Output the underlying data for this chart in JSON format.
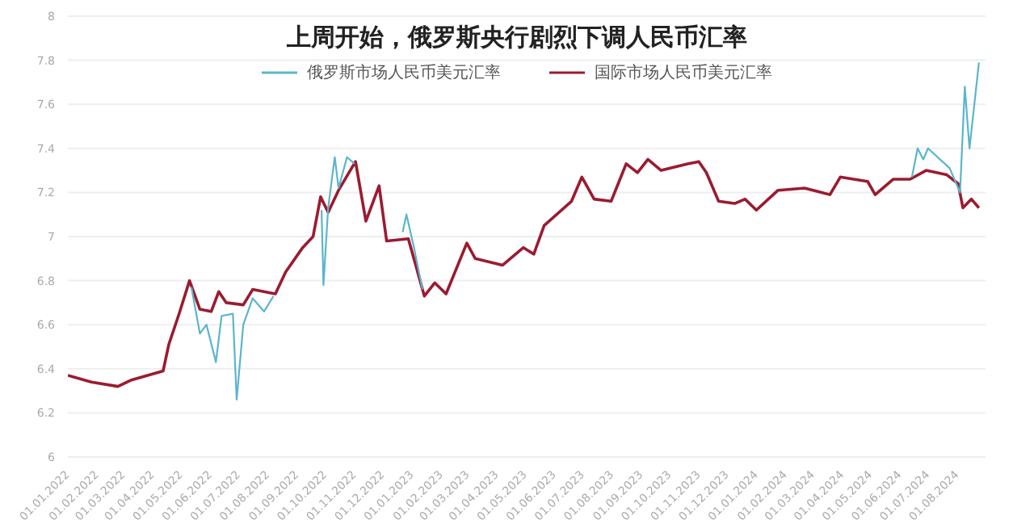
{
  "chart_data": {
    "type": "line",
    "title": "上周开始，俄罗斯央行剧烈下调人民币汇率",
    "legend": "top",
    "grid": "y",
    "marker": "none",
    "line_style": "solid",
    "xlim": [
      "2022-01-01",
      "2024-08-31"
    ],
    "xticks": [
      {
        "value": "2022-01-01",
        "label": "01.01.2022"
      },
      {
        "value": "2022-02-01",
        "label": "01.02.2022"
      },
      {
        "value": "2022-03-01",
        "label": "01.03.2022"
      },
      {
        "value": "2022-04-01",
        "label": "01.04.2022"
      },
      {
        "value": "2022-05-01",
        "label": "01.05.2022"
      },
      {
        "value": "2022-06-01",
        "label": "01.06.2022"
      },
      {
        "value": "2022-07-01",
        "label": "01.07.2022"
      },
      {
        "value": "2022-08-01",
        "label": "01.08.2022"
      },
      {
        "value": "2022-09-01",
        "label": "01.09.2022"
      },
      {
        "value": "2022-10-01",
        "label": "01.10.2022"
      },
      {
        "value": "2022-11-01",
        "label": "01.11.2022"
      },
      {
        "value": "2022-12-01",
        "label": "01.12.2022"
      },
      {
        "value": "2023-01-01",
        "label": "01.01.2023"
      },
      {
        "value": "2023-02-01",
        "label": "01.02.2023"
      },
      {
        "value": "2023-03-01",
        "label": "01.03.2023"
      },
      {
        "value": "2023-04-01",
        "label": "01.04.2023"
      },
      {
        "value": "2023-05-01",
        "label": "01.05.2023"
      },
      {
        "value": "2023-06-01",
        "label": "01.06.2023"
      },
      {
        "value": "2023-07-01",
        "label": "01.07.2023"
      },
      {
        "value": "2023-08-01",
        "label": "01.08.2023"
      },
      {
        "value": "2023-09-01",
        "label": "01.09.2023"
      },
      {
        "value": "2023-10-01",
        "label": "01.10.2023"
      },
      {
        "value": "2023-11-01",
        "label": "01.11.2023"
      },
      {
        "value": "2023-12-01",
        "label": "01.12.2023"
      },
      {
        "value": "2024-01-01",
        "label": "01.01.2024"
      },
      {
        "value": "2024-02-01",
        "label": "01.02.2024"
      },
      {
        "value": "2024-03-01",
        "label": "01.03.2024"
      },
      {
        "value": "2024-04-01",
        "label": "01.04.2024"
      },
      {
        "value": "2024-05-01",
        "label": "01.05.2024"
      },
      {
        "value": "2024-06-01",
        "label": "01.06.2024"
      },
      {
        "value": "2024-07-01",
        "label": "01.07.2024"
      },
      {
        "value": "2024-08-01",
        "label": "01.08.2024"
      }
    ],
    "ylim": [
      6,
      8
    ],
    "yticks": [
      6,
      6.2,
      6.4,
      6.6,
      6.8,
      7,
      7.2,
      7.4,
      7.6,
      7.8,
      8
    ],
    "series": [
      {
        "name": "俄罗斯市场人民币美元汇率",
        "color": "#5bb5cc",
        "x": [
          "2022-05-12",
          "2022-05-21",
          "2022-05-28",
          "2022-06-07",
          "2022-06-13",
          "2022-06-25",
          "2022-06-29",
          "2022-07-06",
          "2022-07-16",
          "2022-07-28",
          "2022-08-07",
          "2022-09-01",
          "2022-09-27",
          "2022-09-29",
          "2022-10-04",
          "2022-10-11",
          "2022-10-15",
          "2022-10-24",
          "2022-11-01",
          "2022-11-15",
          "2022-12-22",
          "2022-12-26",
          "2023-01-03",
          "2023-01-12",
          "2024-01-01",
          "2024-06-14",
          "2024-06-20",
          "2024-06-26",
          "2024-07-01",
          "2024-07-24",
          "2024-08-04",
          "2024-08-09",
          "2024-08-14",
          "2024-08-24"
        ],
        "values": [
          6.77,
          6.56,
          6.6,
          6.43,
          6.64,
          6.65,
          6.26,
          6.6,
          6.72,
          6.66,
          6.73,
          null,
          7.12,
          6.78,
          7.13,
          7.36,
          7.22,
          7.36,
          7.33,
          null,
          7.02,
          7.1,
          6.95,
          6.76,
          null,
          7.27,
          7.4,
          7.35,
          7.4,
          7.31,
          7.2,
          7.68,
          7.4,
          7.79
        ]
      },
      {
        "name": "国际市场人民币美元汇率",
        "color": "#9b1b30",
        "x": [
          "2022-01-01",
          "2022-01-26",
          "2022-02-23",
          "2022-03-10",
          "2022-04-12",
          "2022-04-18",
          "2022-04-29",
          "2022-05-10",
          "2022-05-21",
          "2022-06-02",
          "2022-06-10",
          "2022-06-18",
          "2022-07-06",
          "2022-07-16",
          "2022-08-09",
          "2022-08-20",
          "2022-09-07",
          "2022-09-18",
          "2022-09-26",
          "2022-10-04",
          "2022-10-15",
          "2022-11-02",
          "2022-11-13",
          "2022-11-27",
          "2022-12-05",
          "2022-12-28",
          "2023-01-14",
          "2023-01-25",
          "2023-02-06",
          "2023-02-28",
          "2023-03-09",
          "2023-04-07",
          "2023-04-29",
          "2023-05-10",
          "2023-05-21",
          "2023-06-19",
          "2023-06-30",
          "2023-07-13",
          "2023-07-31",
          "2023-08-16",
          "2023-08-28",
          "2023-09-08",
          "2023-09-22",
          "2023-10-20",
          "2023-11-01",
          "2023-11-09",
          "2023-11-22",
          "2023-12-09",
          "2023-12-20",
          "2024-01-01",
          "2024-01-24",
          "2024-02-21",
          "2024-03-19",
          "2024-03-30",
          "2024-04-28",
          "2024-05-06",
          "2024-05-25",
          "2024-06-12",
          "2024-06-29",
          "2024-07-21",
          "2024-08-02",
          "2024-08-07",
          "2024-08-16",
          "2024-08-24"
        ],
        "values": [
          6.37,
          6.34,
          6.32,
          6.35,
          6.39,
          6.51,
          6.65,
          6.8,
          6.67,
          6.66,
          6.75,
          6.7,
          6.69,
          6.76,
          6.74,
          6.84,
          6.95,
          7.0,
          7.18,
          7.11,
          7.21,
          7.34,
          7.07,
          7.23,
          6.98,
          6.99,
          6.73,
          6.79,
          6.74,
          6.97,
          6.9,
          6.87,
          6.95,
          6.92,
          7.05,
          7.16,
          7.27,
          7.17,
          7.16,
          7.33,
          7.29,
          7.35,
          7.3,
          7.33,
          7.34,
          7.29,
          7.16,
          7.15,
          7.17,
          7.12,
          7.21,
          7.22,
          7.19,
          7.27,
          7.25,
          7.19,
          7.26,
          7.26,
          7.3,
          7.28,
          7.24,
          7.13,
          7.17,
          7.13
        ]
      }
    ]
  }
}
